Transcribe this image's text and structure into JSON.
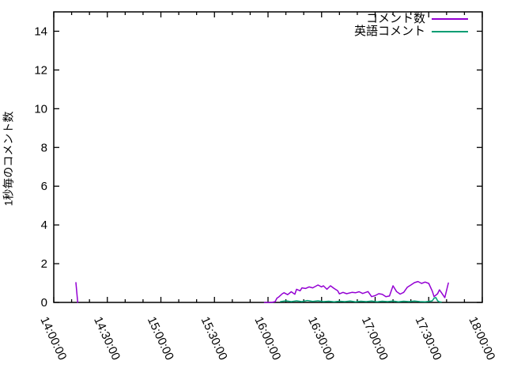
{
  "chart_data": {
    "type": "line",
    "title": "",
    "xlabel": "",
    "ylabel": "1秒毎のコメント数",
    "background": "#ffffff",
    "axis_color": "#000000",
    "grid": false,
    "legend_position": "top-right-inside",
    "ylim": [
      0,
      15
    ],
    "y_ticks": [
      0,
      2,
      4,
      6,
      8,
      10,
      12,
      14
    ],
    "x_range_minutes": [
      0,
      240
    ],
    "x_major_interval_minutes": 30,
    "x_minor_interval_minutes": 10,
    "x_tick_labels": [
      "14:00:00",
      "14:30:00",
      "15:00:00",
      "15:30:00",
      "16:00:00",
      "16:30:00",
      "17:00:00",
      "17:30:00",
      "18:00:00"
    ],
    "x_unit_note": "series x values are minutes after 14:00:00",
    "series": [
      {
        "name": "コメント数",
        "color": "#9400d3",
        "segments": [
          [
            [
              12.4,
              1.02
            ],
            [
              13.4,
              0
            ]
          ],
          [
            [
              118,
              0
            ],
            [
              120,
              0
            ],
            [
              122,
              0
            ],
            [
              124,
              0.04
            ],
            [
              125,
              0.22
            ],
            [
              126,
              0.28
            ],
            [
              128,
              0.45
            ],
            [
              129,
              0.5
            ],
            [
              131,
              0.4
            ],
            [
              133,
              0.55
            ],
            [
              135,
              0.42
            ],
            [
              136,
              0.68
            ],
            [
              138,
              0.6
            ],
            [
              139,
              0.75
            ],
            [
              141,
              0.72
            ],
            [
              143,
              0.8
            ],
            [
              145,
              0.75
            ],
            [
              148,
              0.9
            ],
            [
              150,
              0.8
            ],
            [
              151,
              0.86
            ],
            [
              153,
              0.68
            ],
            [
              155,
              0.86
            ],
            [
              157,
              0.72
            ],
            [
              159,
              0.6
            ],
            [
              160,
              0.44
            ],
            [
              162,
              0.52
            ],
            [
              164,
              0.45
            ],
            [
              167,
              0.52
            ],
            [
              169,
              0.5
            ],
            [
              171,
              0.55
            ],
            [
              173,
              0.46
            ],
            [
              176,
              0.56
            ],
            [
              178,
              0.3
            ],
            [
              180,
              0.35
            ],
            [
              182,
              0.45
            ],
            [
              184,
              0.42
            ],
            [
              186,
              0.3
            ],
            [
              188,
              0.33
            ],
            [
              190,
              0.86
            ],
            [
              192,
              0.56
            ],
            [
              194,
              0.43
            ],
            [
              196,
              0.52
            ],
            [
              198,
              0.78
            ],
            [
              200,
              0.9
            ],
            [
              202,
              1.02
            ],
            [
              204,
              1.08
            ],
            [
              206,
              0.98
            ],
            [
              208,
              1.05
            ],
            [
              210,
              0.98
            ],
            [
              212,
              0.58
            ],
            [
              213,
              0.3
            ],
            [
              215,
              0.45
            ],
            [
              216,
              0.65
            ],
            [
              217,
              0.52
            ],
            [
              219,
              0.25
            ],
            [
              221,
              1.0
            ]
          ]
        ]
      },
      {
        "name": "英語コメント",
        "color": "#009e73",
        "segments": [
          [
            [
              127,
              0.04
            ],
            [
              130,
              0.08
            ],
            [
              133,
              0.04
            ],
            [
              136,
              0.08
            ],
            [
              139,
              0.04
            ],
            [
              142,
              0.1
            ],
            [
              145,
              0.05
            ],
            [
              148,
              0.08
            ],
            [
              151,
              0.04
            ],
            [
              154,
              0.06
            ],
            [
              157,
              0.03
            ],
            [
              160,
              0.06
            ],
            [
              163,
              0.04
            ],
            [
              166,
              0.07
            ],
            [
              169,
              0.03
            ],
            [
              172,
              0.06
            ],
            [
              175,
              0.04
            ],
            [
              178,
              0.07
            ],
            [
              181,
              0.03
            ],
            [
              184,
              0.06
            ],
            [
              187,
              0.04
            ],
            [
              190,
              0.07
            ],
            [
              193,
              0.03
            ],
            [
              196,
              0.06
            ],
            [
              199,
              0.04
            ],
            [
              202,
              0.07
            ],
            [
              205,
              0.04
            ],
            [
              208,
              0.03
            ],
            [
              210,
              0.05
            ],
            [
              212,
              0.08
            ],
            [
              213,
              0.22
            ],
            [
              214,
              0.25
            ],
            [
              215,
              0.08
            ],
            [
              216,
              0.03
            ],
            [
              217,
              0.02
            ]
          ]
        ]
      }
    ]
  }
}
